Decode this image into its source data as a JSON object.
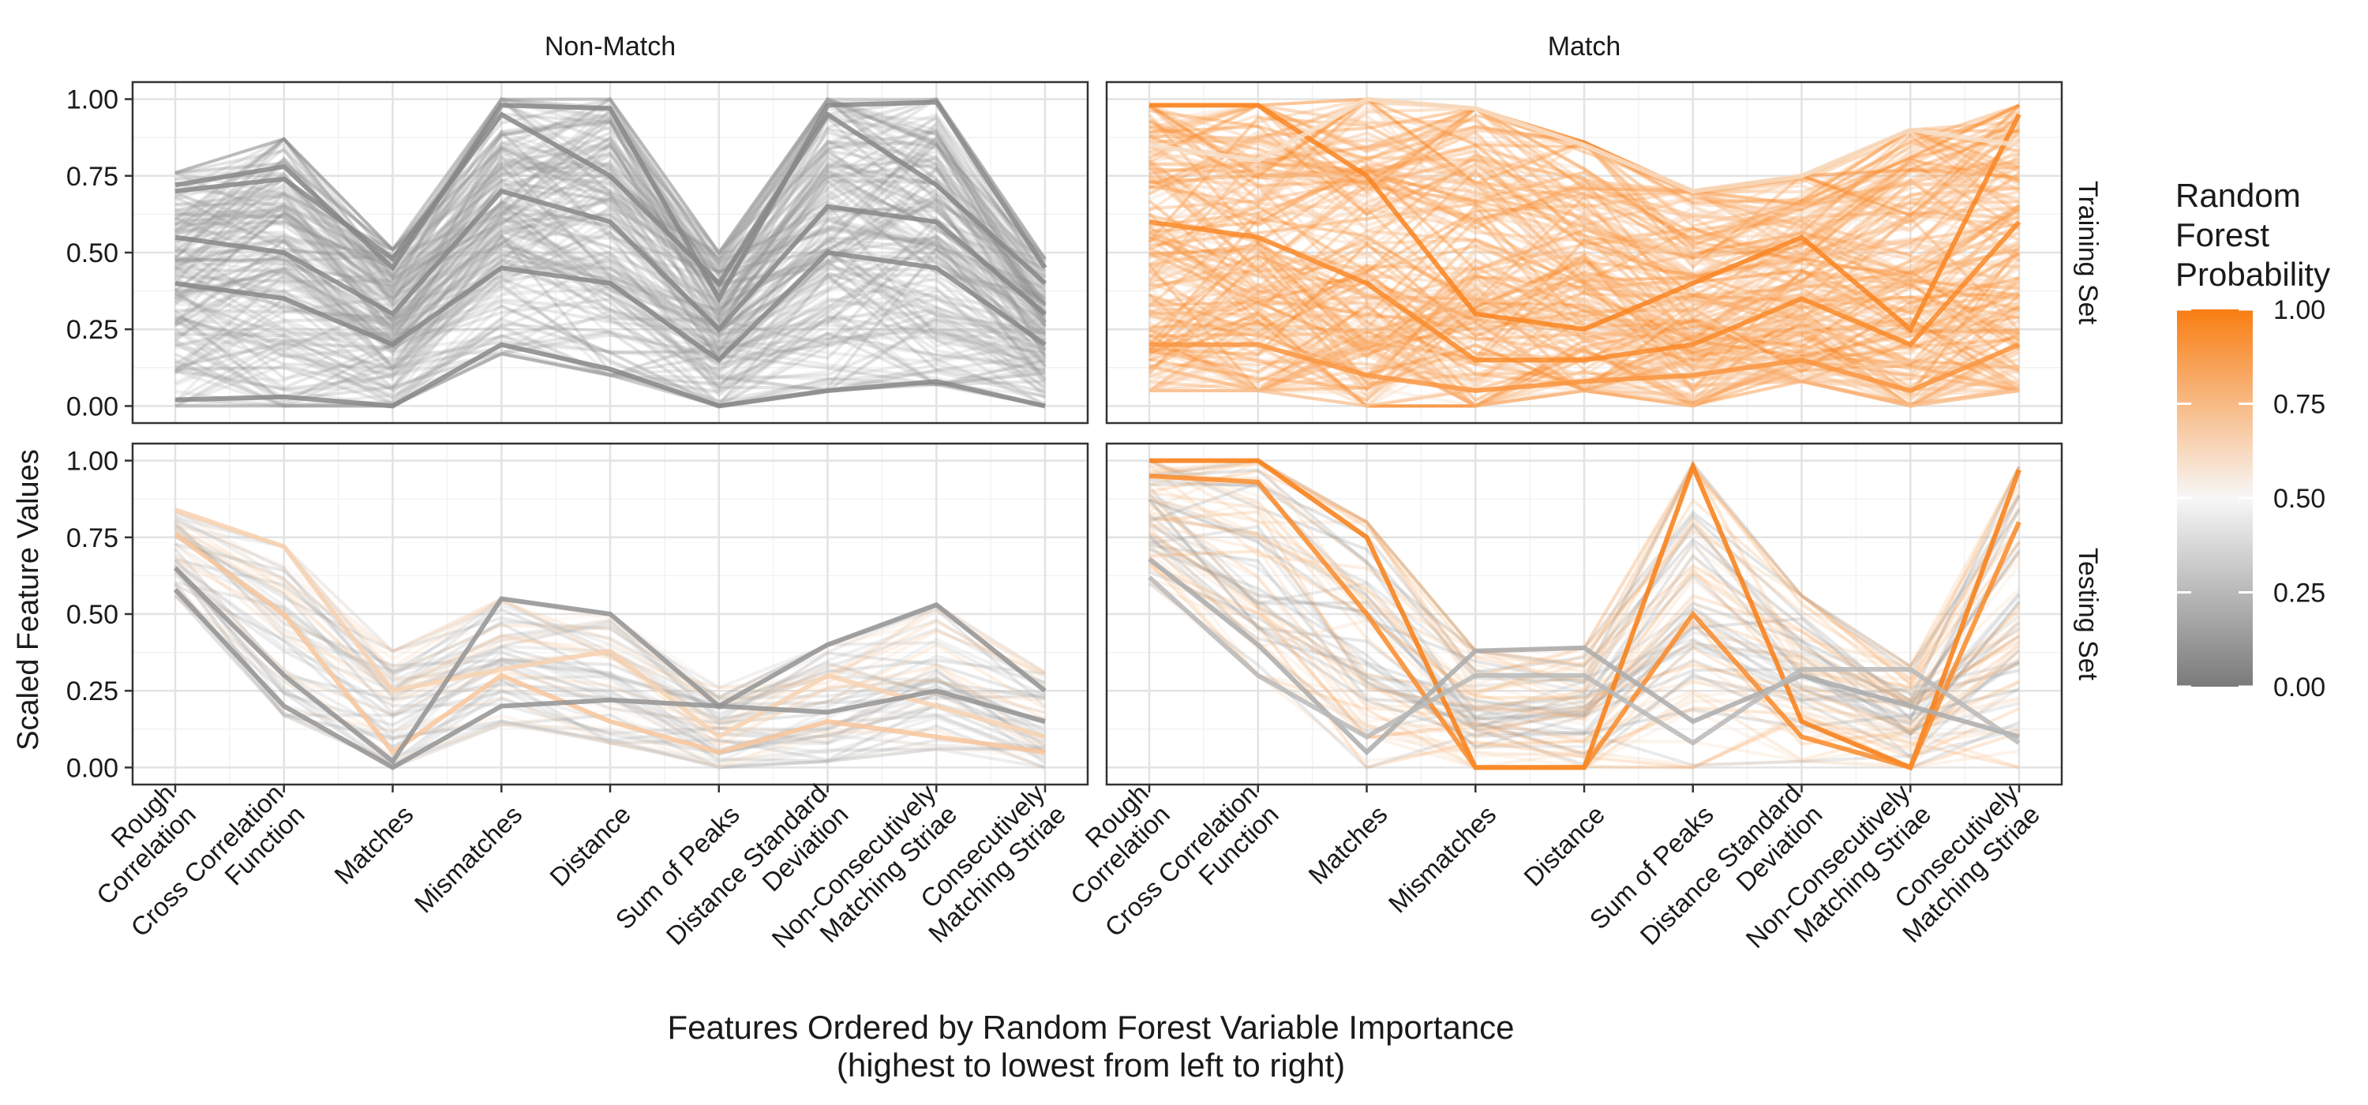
{
  "chart_data": {
    "type": "line",
    "subtype": "parallel-coordinates",
    "facet_columns": [
      "Non-Match",
      "Match"
    ],
    "facet_rows": [
      "Training Set",
      "Testing Set"
    ],
    "features": [
      "Rough Correlation",
      "Cross Correlation Function",
      "Matches",
      "Mismatches",
      "Distance",
      "Sum of Peaks",
      "Distance Standard Deviation",
      "Non-Consecutively Matching Striae",
      "Consecutively Matching Striae"
    ],
    "feature_tick_labels": [
      [
        "Rough",
        "Correlation"
      ],
      [
        "Cross Correlation",
        "Function"
      ],
      [
        "Matches"
      ],
      [
        "Mismatches"
      ],
      [
        "Distance"
      ],
      [
        "Sum of Peaks"
      ],
      [
        "Distance Standard",
        "Deviation"
      ],
      [
        "Non-Consecutively",
        "Matching Striae"
      ],
      [
        "Consecutively",
        "Matching Striae"
      ]
    ],
    "ylabel": "Scaled Feature Values",
    "xlabel_lines": [
      "Features Ordered by Random Forest Variable Importance",
      "(highest to lowest from left to right)"
    ],
    "yticks": [
      "0.00",
      "0.25",
      "0.50",
      "0.75",
      "1.00"
    ],
    "ylim": [
      0,
      1
    ],
    "grid": true,
    "legend": {
      "title_lines": [
        "Random",
        "Forest",
        "Probability"
      ],
      "ticks": [
        "0.00",
        "0.25",
        "0.50",
        "0.75",
        "1.00"
      ],
      "colors": {
        "low": "#7a7a7a",
        "mid": "#f7f7f7",
        "high": "#f97d12"
      },
      "placement": "right"
    },
    "panels": [
      {
        "column": "Non-Match",
        "row": "Training Set",
        "line_count": 180,
        "series": [
          {
            "probability": 0.05,
            "values": [
              0.72,
              0.78,
              0.45,
              0.98,
              0.97,
              0.35,
              0.98,
              0.99,
              0.45
            ]
          },
          {
            "probability": 0.05,
            "values": [
              0.7,
              0.74,
              0.48,
              0.95,
              0.75,
              0.4,
              0.95,
              0.72,
              0.4
            ]
          },
          {
            "probability": 0.05,
            "values": [
              0.02,
              0.03,
              0.0,
              0.2,
              0.12,
              0.0,
              0.05,
              0.08,
              0.0
            ]
          },
          {
            "probability": 0.05,
            "values": [
              0.4,
              0.35,
              0.2,
              0.45,
              0.4,
              0.15,
              0.5,
              0.45,
              0.2
            ]
          },
          {
            "probability": 0.05,
            "values": [
              0.55,
              0.5,
              0.3,
              0.7,
              0.6,
              0.25,
              0.65,
              0.6,
              0.3
            ]
          }
        ],
        "envelope_min": [
          0.0,
          0.0,
          0.0,
          0.17,
          0.1,
          0.0,
          0.05,
          0.07,
          0.0
        ],
        "envelope_max": [
          0.76,
          0.87,
          0.51,
          1.0,
          1.0,
          0.5,
          1.0,
          1.0,
          0.48
        ]
      },
      {
        "column": "Match",
        "row": "Training Set",
        "line_count": 200,
        "series": [
          {
            "probability": 0.97,
            "values": [
              0.98,
              0.98,
              0.75,
              0.3,
              0.25,
              0.4,
              0.55,
              0.25,
              0.95
            ]
          },
          {
            "probability": 0.95,
            "values": [
              0.6,
              0.55,
              0.4,
              0.15,
              0.15,
              0.2,
              0.35,
              0.2,
              0.6
            ]
          },
          {
            "probability": 0.9,
            "values": [
              0.2,
              0.2,
              0.1,
              0.05,
              0.08,
              0.1,
              0.15,
              0.05,
              0.2
            ]
          },
          {
            "probability": 0.6,
            "values": [
              0.85,
              0.8,
              1.0,
              0.97,
              0.85,
              0.7,
              0.75,
              0.9,
              0.85
            ]
          }
        ],
        "envelope_min": [
          0.05,
          0.05,
          0.0,
          0.0,
          0.05,
          0.0,
          0.08,
          0.0,
          0.05
        ],
        "envelope_max": [
          0.98,
          0.98,
          1.0,
          0.97,
          0.86,
          0.7,
          0.75,
          0.9,
          0.98
        ]
      },
      {
        "column": "Non-Match",
        "row": "Testing Set",
        "line_count": 60,
        "series": [
          {
            "probability": 0.65,
            "values": [
              0.84,
              0.72,
              0.25,
              0.32,
              0.38,
              0.1,
              0.3,
              0.2,
              0.1
            ]
          },
          {
            "probability": 0.7,
            "values": [
              0.76,
              0.5,
              0.05,
              0.3,
              0.15,
              0.05,
              0.15,
              0.1,
              0.05
            ]
          },
          {
            "probability": 0.1,
            "values": [
              0.65,
              0.3,
              0.02,
              0.55,
              0.5,
              0.2,
              0.4,
              0.53,
              0.25
            ]
          },
          {
            "probability": 0.1,
            "values": [
              0.58,
              0.2,
              0.0,
              0.2,
              0.22,
              0.2,
              0.18,
              0.25,
              0.15
            ]
          }
        ],
        "envelope_min": [
          0.56,
          0.17,
          0.0,
          0.14,
          0.08,
          0.0,
          0.02,
          0.06,
          0.0
        ],
        "envelope_max": [
          0.84,
          0.72,
          0.38,
          0.55,
          0.5,
          0.26,
          0.4,
          0.53,
          0.31
        ]
      },
      {
        "column": "Match",
        "row": "Testing Set",
        "line_count": 70,
        "series": [
          {
            "probability": 1.0,
            "values": [
              1.0,
              1.0,
              0.75,
              0.0,
              0.0,
              0.98,
              0.15,
              0.0,
              0.97
            ]
          },
          {
            "probability": 0.95,
            "values": [
              0.95,
              0.93,
              0.5,
              0.0,
              0.0,
              0.5,
              0.1,
              0.0,
              0.8
            ]
          },
          {
            "probability": 0.2,
            "values": [
              0.68,
              0.4,
              0.05,
              0.38,
              0.39,
              0.15,
              0.3,
              0.2,
              0.1
            ]
          },
          {
            "probability": 0.25,
            "values": [
              0.62,
              0.3,
              0.1,
              0.3,
              0.3,
              0.08,
              0.32,
              0.32,
              0.08
            ]
          }
        ],
        "envelope_min": [
          0.6,
          0.3,
          0.0,
          0.0,
          0.0,
          0.0,
          0.02,
          0.0,
          0.0
        ],
        "envelope_max": [
          1.0,
          1.0,
          0.8,
          0.38,
          0.39,
          0.99,
          0.56,
          0.33,
          0.98
        ]
      }
    ]
  }
}
